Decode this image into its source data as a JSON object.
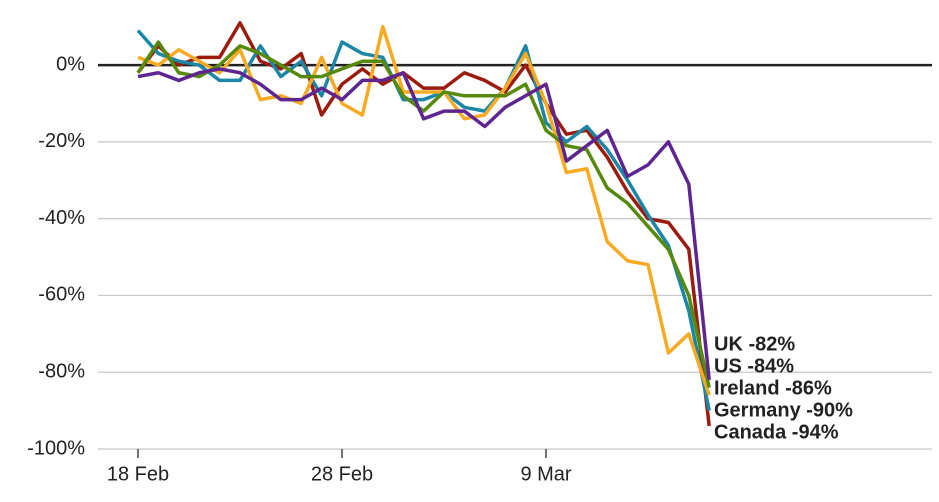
{
  "chart_data": {
    "type": "line",
    "categories": [
      "18 Feb",
      null,
      null,
      null,
      null,
      null,
      null,
      null,
      null,
      null,
      "28 Feb",
      null,
      null,
      null,
      null,
      null,
      null,
      null,
      null,
      null,
      "9 Mar",
      null,
      null,
      null,
      null,
      null,
      null,
      null,
      null
    ],
    "ylim": [
      -100,
      12
    ],
    "yticks": [
      {
        "value": 0,
        "label": "0%"
      },
      {
        "value": -20,
        "label": "-20%"
      },
      {
        "value": -40,
        "label": "-40%"
      },
      {
        "value": -60,
        "label": "-60%"
      },
      {
        "value": -80,
        "label": "-80%"
      },
      {
        "value": -100,
        "label": "-100%"
      }
    ],
    "grid": true,
    "series": [
      {
        "label": "Canada -94%",
        "color": "#9b1c0f",
        "values": [
          -2,
          5,
          0,
          2,
          2,
          11,
          1,
          -1,
          3,
          -13,
          -5,
          -1,
          -5,
          -2,
          -6,
          -6,
          -2,
          -4,
          -7,
          0,
          -10,
          -18,
          -17,
          -24,
          -33,
          -40,
          -41,
          -48,
          -94
        ]
      },
      {
        "label": "Germany -90%",
        "color": "#1b86a6",
        "values": [
          9,
          3,
          1,
          0,
          -4,
          -4,
          5,
          -3,
          1,
          -8,
          6,
          3,
          2,
          -9,
          -9,
          -7,
          -11,
          -12,
          -6,
          5,
          -15,
          -20,
          -16,
          -22,
          -30,
          -39,
          -47,
          -64,
          -90
        ]
      },
      {
        "label": "Ireland -86%",
        "color": "#f7aa22",
        "values": [
          2,
          0,
          4,
          1,
          -2,
          4,
          -9,
          -8,
          -10,
          2,
          -10,
          -13,
          10,
          -7,
          -7,
          -7,
          -14,
          -13,
          -6,
          3,
          -10,
          -28,
          -27,
          -46,
          -51,
          -52,
          -75,
          -70,
          -86
        ]
      },
      {
        "label": "US -84%",
        "color": "#578a0c",
        "values": [
          -2,
          6,
          -2,
          -3,
          0,
          5,
          3,
          0,
          -3,
          -3,
          -1,
          1,
          1,
          -8,
          -12,
          -7,
          -8,
          -8,
          -8,
          -5,
          -17,
          -21,
          -22,
          -32,
          -36,
          -42,
          -48,
          -60,
          -84
        ]
      },
      {
        "label": "UK -82%",
        "color": "#5e2590",
        "values": [
          -3,
          -2,
          -4,
          -2,
          -1,
          -2,
          -5,
          -9,
          -9,
          -6,
          -9,
          -4,
          -4,
          -2,
          -14,
          -12,
          -12,
          -16,
          -11,
          -8,
          -5,
          -25,
          -21,
          -17,
          -29,
          -26,
          -20,
          -31,
          -82
        ]
      }
    ]
  }
}
